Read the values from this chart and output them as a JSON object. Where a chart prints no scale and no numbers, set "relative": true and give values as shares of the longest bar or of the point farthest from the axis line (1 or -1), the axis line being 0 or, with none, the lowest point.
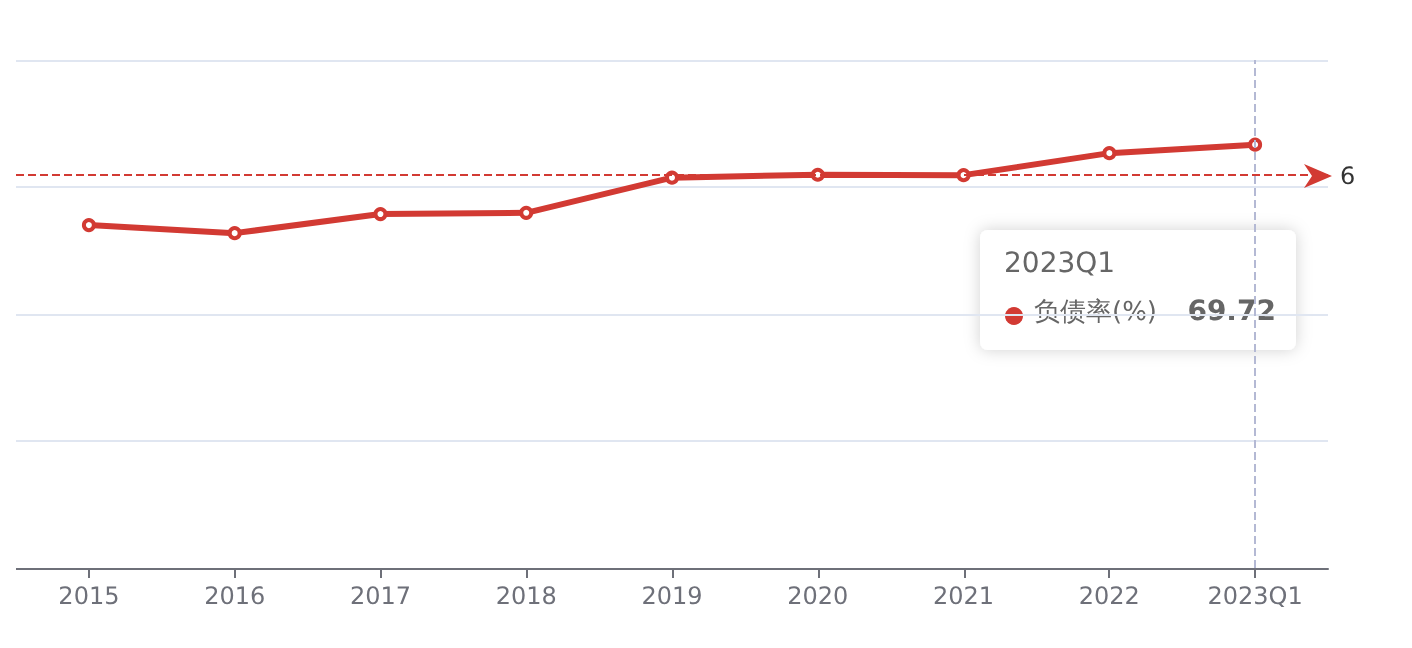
{
  "chart_data": {
    "type": "line",
    "relative": true,
    "categories": [
      "2015",
      "2016",
      "2017",
      "2018",
      "2019",
      "2020",
      "2021",
      "2022",
      "2023Q1"
    ],
    "series": [
      {
        "name": "负债率(%)",
        "color": "#d23a33",
        "values": [
          0.81,
          0.791,
          0.836,
          0.839,
          0.922,
          0.929,
          0.928,
          0.98,
          1
        ]
      }
    ],
    "ref_lines": [
      {
        "axis": "y",
        "value": 0.927,
        "color": "#d23a33",
        "line_style": "dashed"
      },
      {
        "axis": "x",
        "value": "2023Q1",
        "color": "#b4b9d4",
        "line_style": "dashed"
      }
    ],
    "annotations": [
      "2023Q1",
      "69.72",
      "6"
    ],
    "grid": "y",
    "legend": "right",
    "marker": "circle",
    "line_style": "solid"
  }
}
